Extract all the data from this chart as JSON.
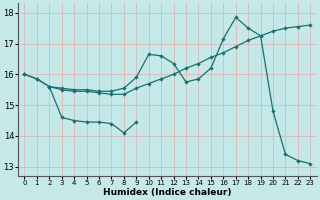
{
  "xlabel": "Humidex (Indice chaleur)",
  "background_color": "#c5e8e8",
  "grid_color": "#deb8b8",
  "line_color": "#1a7070",
  "xlim": [
    -0.5,
    23.5
  ],
  "ylim": [
    12.7,
    18.3
  ],
  "yticks": [
    13,
    14,
    15,
    16,
    17,
    18
  ],
  "xticks": [
    0,
    1,
    2,
    3,
    4,
    5,
    6,
    7,
    8,
    9,
    10,
    11,
    12,
    13,
    14,
    15,
    16,
    17,
    18,
    19,
    20,
    21,
    22,
    23
  ],
  "series1_x": [
    0,
    1,
    2,
    3,
    4,
    5,
    6,
    7,
    8,
    9,
    10,
    11,
    12,
    13,
    14,
    15,
    16,
    17,
    18,
    19,
    20,
    21,
    22,
    23
  ],
  "series1_y": [
    16.0,
    15.85,
    15.6,
    15.55,
    15.5,
    15.5,
    15.45,
    15.45,
    15.55,
    15.9,
    16.65,
    16.6,
    16.35,
    15.75,
    15.85,
    16.2,
    17.15,
    17.85,
    17.5,
    17.25,
    14.8,
    13.4,
    13.2,
    13.1
  ],
  "series2_x": [
    0,
    1,
    2,
    3,
    4,
    5,
    6,
    7,
    8,
    9,
    10,
    11,
    12,
    13,
    14,
    15,
    16,
    17,
    18,
    19,
    20,
    21,
    22,
    23
  ],
  "series2_y": [
    16.0,
    15.85,
    15.6,
    15.5,
    15.45,
    15.45,
    15.4,
    15.35,
    15.35,
    15.55,
    15.7,
    15.85,
    16.0,
    16.2,
    16.35,
    16.55,
    16.7,
    16.9,
    17.1,
    17.25,
    17.4,
    17.5,
    17.55,
    17.6
  ],
  "series3_x": [
    2,
    3,
    4,
    5,
    6,
    7,
    8,
    9
  ],
  "series3_y": [
    15.6,
    14.6,
    14.5,
    14.45,
    14.45,
    14.4,
    14.1,
    14.45
  ]
}
